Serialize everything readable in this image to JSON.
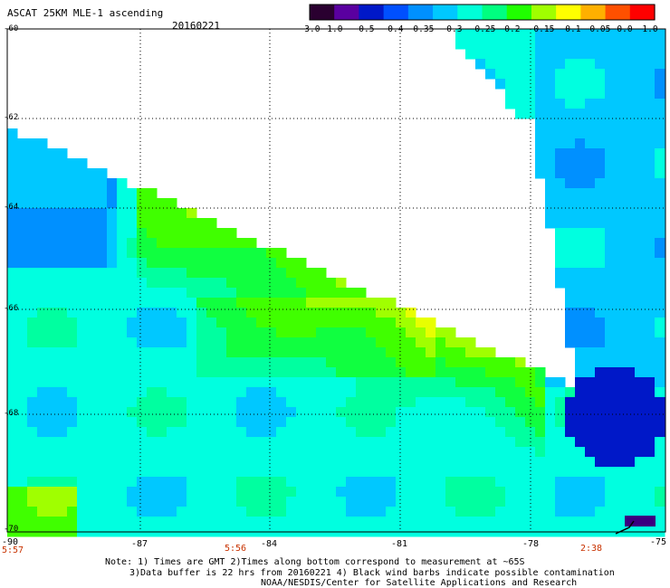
{
  "header": {
    "title": "ASCAT 25KM MLE-1 ascending",
    "date": "20160221"
  },
  "colorbar": {
    "labels": [
      "-3.0",
      "-1.0",
      "-0.5",
      "-0.4",
      "-0.35",
      "-0.3",
      "-0.25",
      "-0.2",
      "-0.15",
      "-0.1",
      "-0.05",
      "0.0",
      "1.0"
    ],
    "colors": [
      "#2a0030",
      "#5a00a0",
      "#0018c8",
      "#0050ff",
      "#0090ff",
      "#00c8ff",
      "#00ffd8",
      "#00ff80",
      "#20ff00",
      "#a0ff00",
      "#ffff00",
      "#ffb000",
      "#ff5000",
      "#ff0000"
    ]
  },
  "axes": {
    "y_ticks": [
      "-60",
      "-62",
      "-64",
      "-66",
      "-68",
      "-70"
    ],
    "x_ticks": [
      "-90",
      "-87",
      "-84",
      "-81",
      "-78",
      "-75"
    ],
    "times": [
      "5:57",
      "5:56",
      "2:38"
    ]
  },
  "notes": {
    "line1": "Note: 1) Times are GMT 2)Times along bottom correspond to measurement at ~65S",
    "line2": "3)Data buffer is 22 hrs from 20160221 4) Black wind barbs indicate possible contamination",
    "line3": "NOAA/NESDIS/Center for Satellite Applications and Research"
  }
}
